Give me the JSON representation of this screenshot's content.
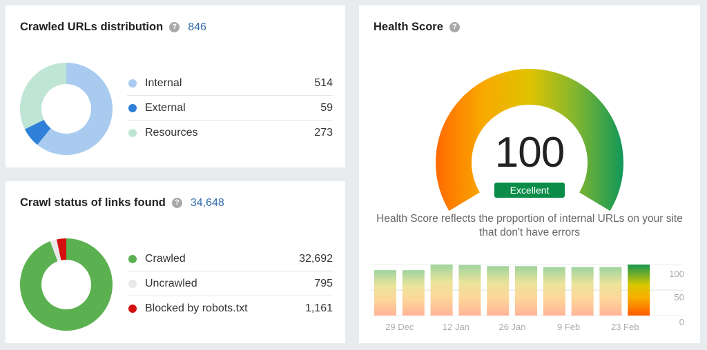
{
  "crawled_distribution": {
    "title": "Crawled URLs distribution",
    "total": "846",
    "help_icon": "?",
    "items": [
      {
        "label": "Internal",
        "value": "514",
        "color": "#a9cbf0"
      },
      {
        "label": "External",
        "value": "59",
        "color": "#2f80d8"
      },
      {
        "label": "Resources",
        "value": "273",
        "color": "#bfe6d5"
      }
    ]
  },
  "crawl_status": {
    "title": "Crawl status of links found",
    "total": "34,648",
    "help_icon": "?",
    "items": [
      {
        "label": "Crawled",
        "value": "32,692",
        "color": "#5bb050"
      },
      {
        "label": "Uncrawled",
        "value": "795",
        "color": "#e9e9e9"
      },
      {
        "label": "Blocked by robots.txt",
        "value": "1,161",
        "color": "#d40f0f"
      }
    ]
  },
  "health_score": {
    "title": "Health Score",
    "help_icon": "?",
    "score": "100",
    "rating": "Excellent",
    "description": "Health Score reflects the proportion of internal URLs on your site that don't have errors"
  },
  "chart_data": [
    {
      "type": "pie",
      "title": "Crawled URLs distribution",
      "categories": [
        "Internal",
        "External",
        "Resources"
      ],
      "values": [
        514,
        59,
        273
      ],
      "total": 846
    },
    {
      "type": "pie",
      "title": "Crawl status of links found",
      "categories": [
        "Crawled",
        "Uncrawled",
        "Blocked by robots.txt"
      ],
      "values": [
        32692,
        795,
        1161
      ],
      "total": 34648
    },
    {
      "type": "bar",
      "title": "Health Score history",
      "x_tick_labels": [
        "29 Dec",
        "12 Jan",
        "26 Jan",
        "9 Feb",
        "23 Feb"
      ],
      "values": [
        89,
        89,
        100,
        99,
        97,
        97,
        95,
        95,
        95,
        100
      ],
      "yticks": [
        0,
        50,
        100
      ],
      "ylim": [
        0,
        100
      ],
      "grid": true,
      "highlight_last": true
    }
  ]
}
